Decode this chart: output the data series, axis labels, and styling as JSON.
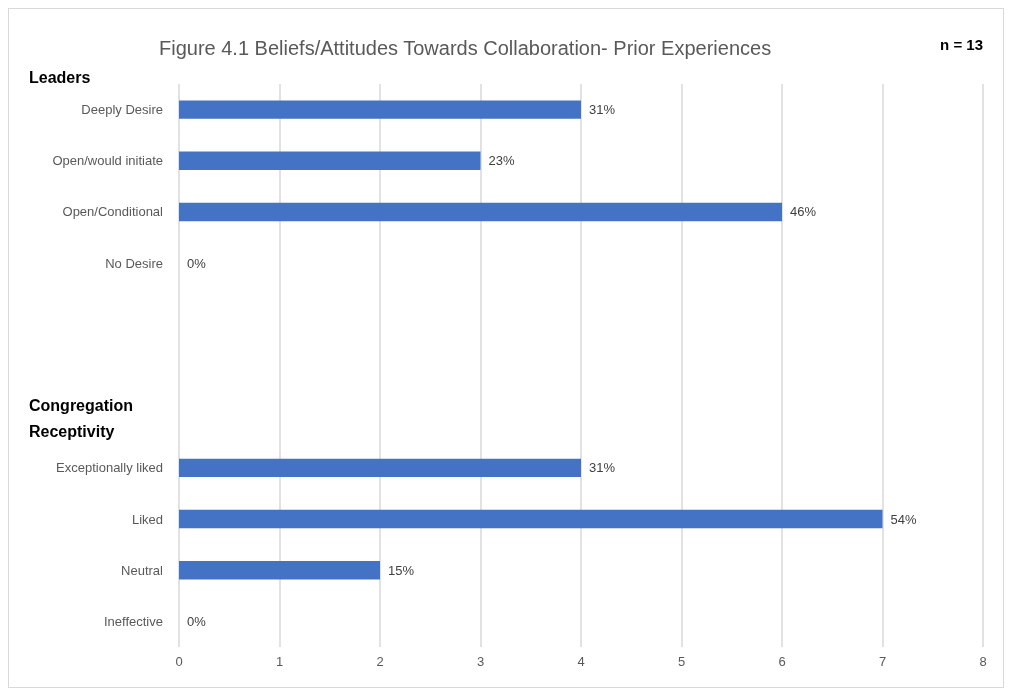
{
  "chart_data": {
    "type": "bar",
    "orientation": "horizontal",
    "title": "Figure 4.1 Beliefs/Attitudes Towards Collaboration- Prior Experiences",
    "categories": [
      "Deeply Desire",
      "Open/would initiate",
      "Open/Conditional",
      "No Desire",
      null,
      null,
      null,
      "Exceptionally liked",
      "Liked",
      "Neutral",
      "Ineffective"
    ],
    "values": [
      4,
      3,
      6,
      0,
      null,
      null,
      null,
      4,
      7,
      2,
      0
    ],
    "color": "#4472c4",
    "xlim": [
      0,
      8
    ],
    "xticks": [
      0,
      1,
      2,
      3,
      4,
      5,
      6,
      7,
      8
    ],
    "grid": "x",
    "annotations": [
      "n = 13",
      "Leaders",
      "Congregation\nReceptivity",
      {
        "text": "31%",
        "x": 4,
        "y": "Deeply Desire"
      },
      {
        "text": "23%",
        "x": 3,
        "y": "Open/would initiate"
      },
      {
        "text": "46%",
        "x": 6,
        "y": "Open/Conditional"
      },
      {
        "text": "0%",
        "x": 0,
        "y": "No Desire"
      },
      {
        "text": "31%",
        "x": 4,
        "y": "Exceptionally liked"
      },
      {
        "text": "54%",
        "x": 7,
        "y": "Liked"
      },
      {
        "text": "15%",
        "x": 2,
        "y": "Neutral"
      },
      {
        "text": "0%",
        "x": 0,
        "y": "Ineffective"
      }
    ]
  }
}
